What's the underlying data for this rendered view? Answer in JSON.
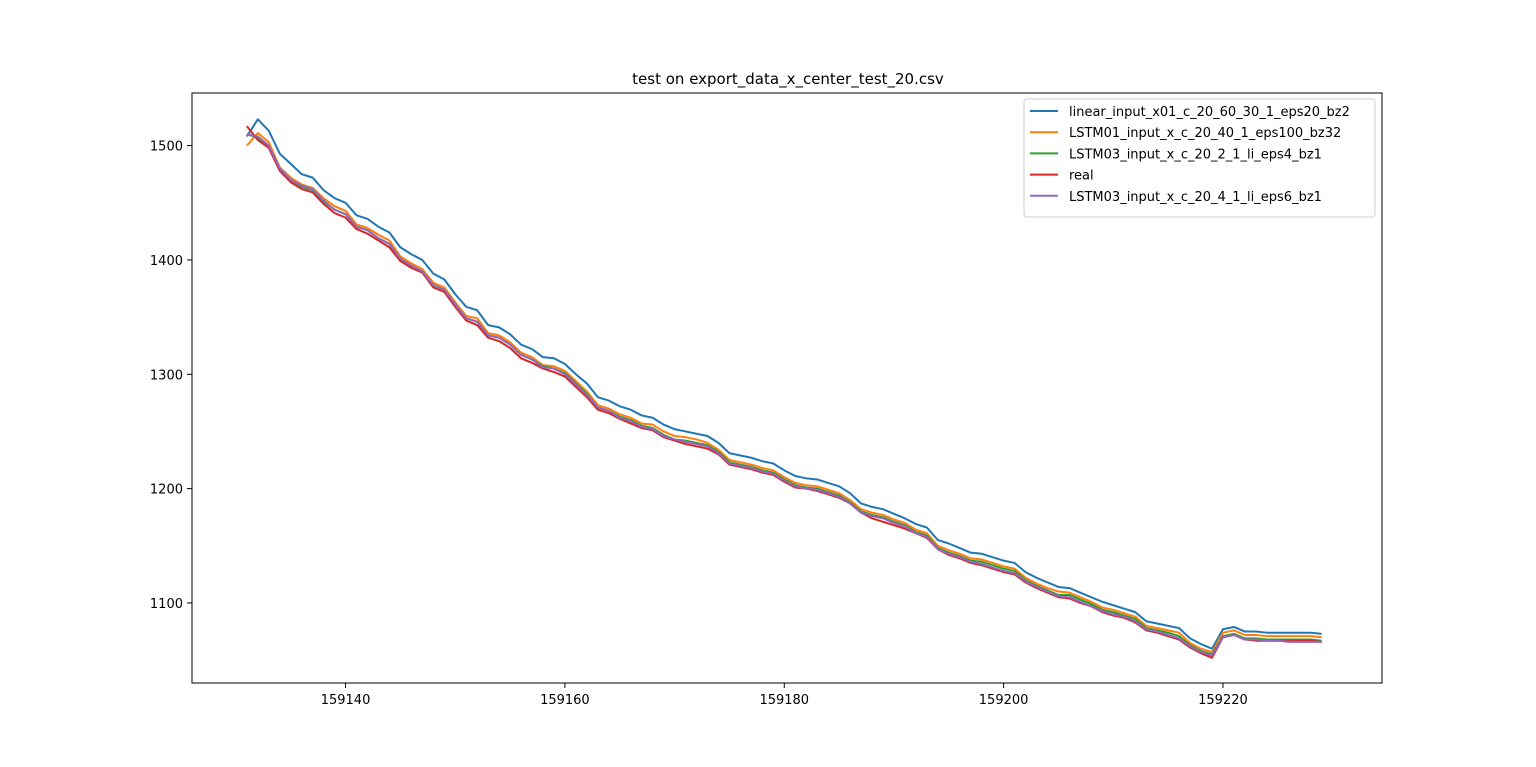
{
  "chart_data": {
    "type": "line",
    "title": "test on export_data_x_center_test_20.csv",
    "xlabel": "",
    "ylabel": "",
    "xlim": [
      159126,
      159234.5
    ],
    "ylim": [
      1030,
      1546
    ],
    "xticks": [
      159140,
      159160,
      159180,
      159200,
      159220
    ],
    "yticks": [
      1100,
      1200,
      1300,
      1400,
      1500
    ],
    "grid": false,
    "legend_position": "top-right",
    "x_start": 159131,
    "x_end": 159229,
    "series": [
      {
        "name": "linear_input_x01_c_20_60_30_1_eps20_bz2",
        "color": "#1f77b4",
        "values": [
          1508,
          1523,
          1513,
          1493,
          1484,
          1475,
          1472,
          1461,
          1454,
          1450,
          1439,
          1436,
          1429,
          1424,
          1411,
          1405,
          1400,
          1388,
          1383,
          1370,
          1359,
          1356,
          1343,
          1341,
          1335,
          1326,
          1322,
          1315,
          1314,
          1309,
          1300,
          1292,
          1280,
          1277,
          1272,
          1269,
          1264,
          1262,
          1256,
          1252,
          1250,
          1248,
          1246,
          1240,
          1231,
          1229,
          1227,
          1224,
          1222,
          1216,
          1211,
          1209,
          1208,
          1205,
          1202,
          1196,
          1187,
          1184,
          1182,
          1178,
          1174,
          1169,
          1166,
          1155,
          1152,
          1148,
          1144,
          1143,
          1140,
          1137,
          1135,
          1127,
          1122,
          1118,
          1114,
          1113,
          1109,
          1105,
          1101,
          1098,
          1095,
          1092,
          1084,
          1082,
          1080,
          1078,
          1069,
          1064,
          1060,
          1077,
          1079,
          1075,
          1075,
          1074,
          1074,
          1074,
          1074,
          1074,
          1073
        ]
      },
      {
        "name": "LSTM01_input_x_c_20_40_1_eps100_bz32",
        "color": "#ff7f0e",
        "values": [
          1500,
          1511,
          1503,
          1481,
          1472,
          1466,
          1463,
          1454,
          1447,
          1443,
          1431,
          1428,
          1422,
          1417,
          1403,
          1397,
          1392,
          1380,
          1376,
          1363,
          1351,
          1349,
          1336,
          1334,
          1328,
          1319,
          1315,
          1308,
          1307,
          1303,
          1294,
          1285,
          1273,
          1270,
          1265,
          1262,
          1257,
          1256,
          1250,
          1246,
          1245,
          1243,
          1240,
          1234,
          1225,
          1223,
          1221,
          1218,
          1216,
          1210,
          1205,
          1203,
          1202,
          1199,
          1196,
          1190,
          1182,
          1179,
          1177,
          1173,
          1170,
          1164,
          1161,
          1150,
          1146,
          1143,
          1139,
          1138,
          1135,
          1132,
          1130,
          1122,
          1117,
          1113,
          1110,
          1109,
          1105,
          1101,
          1096,
          1094,
          1091,
          1088,
          1080,
          1078,
          1076,
          1074,
          1065,
          1060,
          1057,
          1074,
          1076,
          1072,
          1072,
          1071,
          1071,
          1071,
          1071,
          1071,
          1070
        ]
      },
      {
        "name": "LSTM03_input_x_c_20_2_1_li_eps4_bz1",
        "color": "#2ca02c",
        "values": [
          1510,
          1507,
          1499,
          1480,
          1470,
          1464,
          1461,
          1451,
          1444,
          1440,
          1429,
          1426,
          1419,
          1414,
          1401,
          1395,
          1390,
          1378,
          1374,
          1361,
          1349,
          1346,
          1334,
          1332,
          1326,
          1317,
          1313,
          1307,
          1305,
          1301,
          1292,
          1283,
          1271,
          1268,
          1263,
          1260,
          1255,
          1253,
          1247,
          1243,
          1242,
          1240,
          1238,
          1232,
          1223,
          1221,
          1219,
          1216,
          1214,
          1208,
          1203,
          1201,
          1200,
          1197,
          1194,
          1188,
          1180,
          1177,
          1175,
          1171,
          1168,
          1162,
          1159,
          1148,
          1144,
          1141,
          1137,
          1136,
          1133,
          1130,
          1128,
          1120,
          1115,
          1111,
          1107,
          1107,
          1103,
          1099,
          1094,
          1092,
          1089,
          1086,
          1078,
          1076,
          1074,
          1071,
          1063,
          1058,
          1055,
          1071,
          1073,
          1069,
          1069,
          1068,
          1068,
          1068,
          1068,
          1068,
          1067
        ]
      },
      {
        "name": "real",
        "color": "#d62728",
        "values": [
          1517,
          1505,
          1498,
          1478,
          1468,
          1462,
          1459,
          1449,
          1441,
          1437,
          1427,
          1423,
          1417,
          1411,
          1399,
          1393,
          1389,
          1376,
          1372,
          1359,
          1347,
          1343,
          1332,
          1329,
          1323,
          1314,
          1310,
          1305,
          1302,
          1298,
          1289,
          1280,
          1269,
          1266,
          1261,
          1257,
          1253,
          1251,
          1245,
          1242,
          1239,
          1237,
          1235,
          1230,
          1221,
          1219,
          1217,
          1214,
          1212,
          1206,
          1201,
          1200,
          1198,
          1195,
          1192,
          1187,
          1179,
          1174,
          1171,
          1168,
          1165,
          1161,
          1157,
          1147,
          1142,
          1139,
          1135,
          1133,
          1130,
          1127,
          1125,
          1118,
          1113,
          1109,
          1105,
          1104,
          1100,
          1097,
          1092,
          1089,
          1087,
          1083,
          1076,
          1074,
          1071,
          1068,
          1061,
          1056,
          1052,
          1070,
          1072,
          1068,
          1067,
          1067,
          1067,
          1067,
          1067,
          1067,
          1066
        ]
      },
      {
        "name": "LSTM03_input_x_c_20_4_1_li_eps6_bz1",
        "color": "#9467bd",
        "values": [
          1510,
          1508,
          1500,
          1480,
          1470,
          1465,
          1462,
          1452,
          1444,
          1440,
          1429,
          1426,
          1419,
          1414,
          1401,
          1395,
          1390,
          1378,
          1374,
          1361,
          1349,
          1346,
          1334,
          1332,
          1326,
          1317,
          1313,
          1306,
          1305,
          1300,
          1291,
          1282,
          1271,
          1268,
          1262,
          1259,
          1254,
          1252,
          1246,
          1243,
          1241,
          1239,
          1237,
          1231,
          1222,
          1220,
          1218,
          1215,
          1213,
          1207,
          1202,
          1200,
          1199,
          1196,
          1193,
          1187,
          1179,
          1176,
          1174,
          1170,
          1167,
          1161,
          1158,
          1147,
          1143,
          1140,
          1136,
          1134,
          1131,
          1128,
          1126,
          1119,
          1114,
          1110,
          1106,
          1105,
          1101,
          1097,
          1093,
          1090,
          1088,
          1084,
          1077,
          1075,
          1072,
          1069,
          1062,
          1057,
          1054,
          1070,
          1072,
          1068,
          1068,
          1067,
          1067,
          1066,
          1066,
          1066,
          1066
        ]
      }
    ]
  }
}
